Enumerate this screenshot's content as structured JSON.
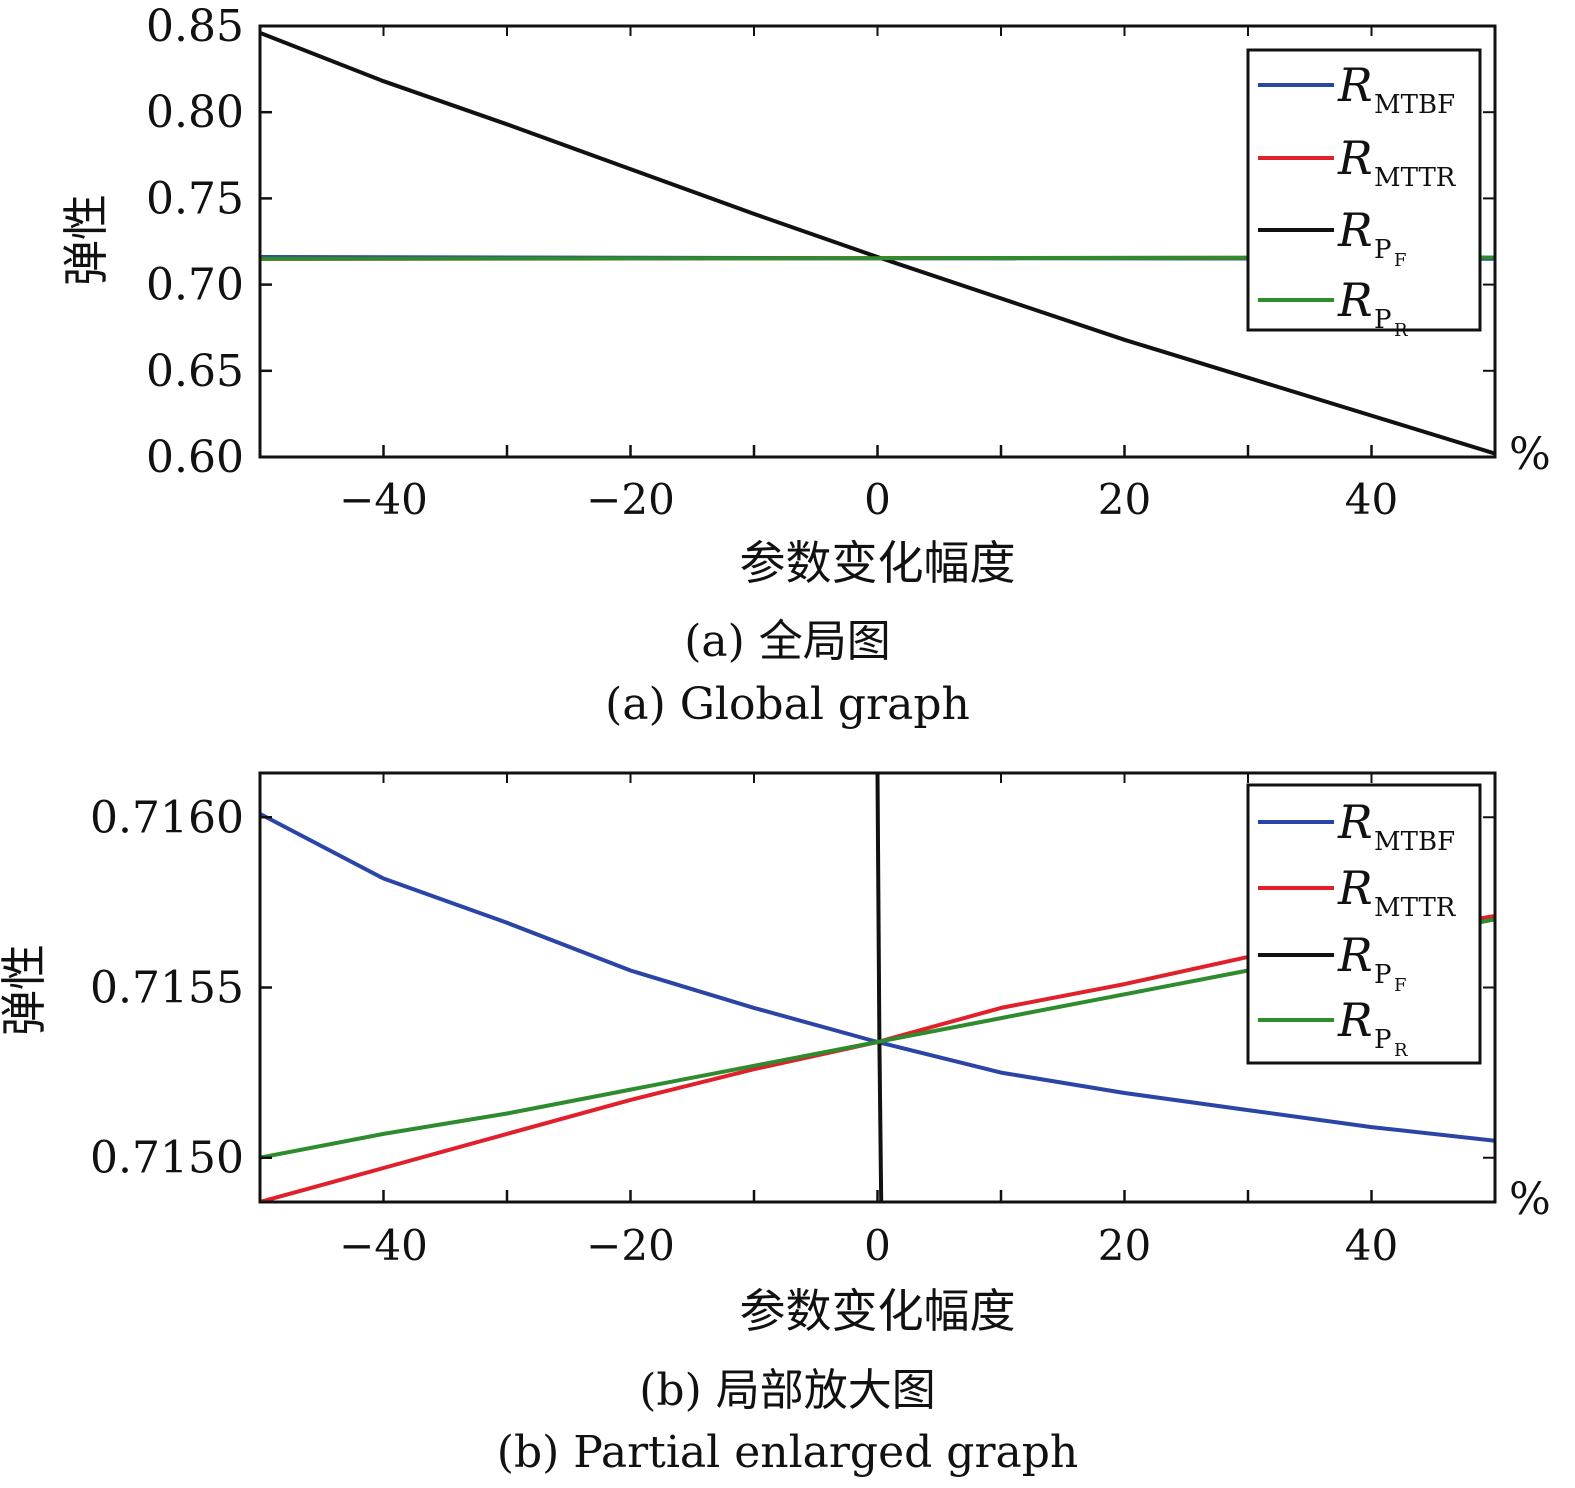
{
  "captions": {
    "a_cn": "(a) 全局图",
    "a_en": "(a) Global graph",
    "b_cn": "(b) 局部放大图",
    "b_en": "(b) Partial enlarged graph"
  },
  "chart_data": [
    {
      "type": "line",
      "xlabel": "参数变化幅度",
      "ylabel": "弹性",
      "x_unit": "%",
      "xlim": [
        -50,
        50
      ],
      "ylim": [
        0.6,
        0.85
      ],
      "xticks": [
        -40,
        -20,
        0,
        20,
        40
      ],
      "xtick_labels": [
        "−40",
        "−20",
        "0",
        "20",
        "40"
      ],
      "yticks": [
        0.6,
        0.65,
        0.7,
        0.75,
        0.8,
        0.85
      ],
      "ytick_labels": [
        "0.60",
        "0.65",
        "0.70",
        "0.75",
        "0.80",
        "0.85"
      ],
      "grid": false,
      "legend_position": "top-right",
      "series": [
        {
          "name": "R_MTBF",
          "main": "R",
          "sub": "MTBF",
          "color": "#2b45a6",
          "x": [
            -50,
            0,
            50
          ],
          "y": [
            0.716,
            0.71534,
            0.715
          ]
        },
        {
          "name": "R_MTTR",
          "main": "R",
          "sub": "MTTR",
          "color": "#e0212b",
          "x": [
            -50,
            0,
            50
          ],
          "y": [
            0.7149,
            0.71534,
            0.7157
          ]
        },
        {
          "name": "R_PF",
          "main": "R",
          "sub": "P",
          "subsub": "F",
          "color": "#111111",
          "x": [
            -50,
            -40,
            -30,
            -20,
            -10,
            0,
            10,
            20,
            30,
            40,
            50
          ],
          "y": [
            0.846,
            0.818,
            0.793,
            0.767,
            0.741,
            0.716,
            0.692,
            0.668,
            0.646,
            0.624,
            0.602
          ]
        },
        {
          "name": "R_PR",
          "main": "R",
          "sub": "P",
          "subsub": "R",
          "color": "#2e8b2e",
          "x": [
            -50,
            0,
            50
          ],
          "y": [
            0.715,
            0.71534,
            0.7157
          ]
        }
      ]
    },
    {
      "type": "line",
      "xlabel": "参数变化幅度",
      "ylabel": "弹性",
      "x_unit": "%",
      "xlim": [
        -50,
        50
      ],
      "ylim": [
        0.71487,
        0.71613
      ],
      "xticks": [
        -40,
        -20,
        0,
        20,
        40
      ],
      "xtick_labels": [
        "−40",
        "−20",
        "0",
        "20",
        "40"
      ],
      "yticks": [
        0.715,
        0.7155,
        0.716
      ],
      "ytick_labels": [
        "0.7150",
        "0.7155",
        "0.7160"
      ],
      "grid": false,
      "legend_position": "top-right",
      "series": [
        {
          "name": "R_MTBF",
          "main": "R",
          "sub": "MTBF",
          "color": "#2b45a6",
          "x": [
            -50,
            -40,
            -30,
            -20,
            -10,
            0,
            10,
            20,
            30,
            40,
            50
          ],
          "y": [
            0.71601,
            0.71582,
            0.71569,
            0.71555,
            0.71544,
            0.71534,
            0.71525,
            0.71519,
            0.71514,
            0.71509,
            0.71505
          ]
        },
        {
          "name": "R_MTTR",
          "main": "R",
          "sub": "MTTR",
          "color": "#e0212b",
          "x": [
            -50,
            -40,
            -30,
            -20,
            -10,
            0,
            10,
            20,
            30,
            40,
            50
          ],
          "y": [
            0.71487,
            0.71497,
            0.71507,
            0.71517,
            0.71526,
            0.71534,
            0.71544,
            0.71551,
            0.71559,
            0.71565,
            0.71571
          ]
        },
        {
          "name": "R_PF",
          "main": "R",
          "sub": "P",
          "subsub": "F",
          "color": "#111111",
          "x": [
            0,
            0.15,
            0.3
          ],
          "y": [
            0.71613,
            0.71534,
            0.71487
          ]
        },
        {
          "name": "R_PR",
          "main": "R",
          "sub": "P",
          "subsub": "R",
          "color": "#2e8b2e",
          "x": [
            -50,
            -40,
            -30,
            -20,
            -10,
            0,
            10,
            20,
            30,
            40,
            50
          ],
          "y": [
            0.715,
            0.71507,
            0.71513,
            0.7152,
            0.71527,
            0.71534,
            0.71541,
            0.71548,
            0.71555,
            0.71563,
            0.7157
          ]
        }
      ]
    }
  ]
}
